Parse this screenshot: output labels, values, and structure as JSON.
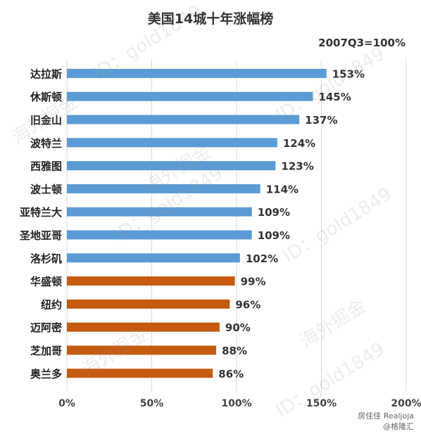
{
  "chart_data": {
    "type": "bar",
    "orientation": "horizontal",
    "title": "美国14城十年涨幅榜",
    "subtitle": "2007Q3=100%",
    "categories": [
      "达拉斯",
      "休斯顿",
      "旧金山",
      "波特兰",
      "西雅图",
      "波士顿",
      "亚特兰大",
      "圣地亚哥",
      "洛杉矶",
      "华盛顿",
      "纽约",
      "迈阿密",
      "芝加哥",
      "奥兰多"
    ],
    "values": [
      153,
      145,
      137,
      124,
      123,
      114,
      109,
      109,
      102,
      99,
      96,
      90,
      88,
      86
    ],
    "value_labels": [
      "153%",
      "145%",
      "137%",
      "124%",
      "123%",
      "114%",
      "109%",
      "109%",
      "102%",
      "99%",
      "96%",
      "90%",
      "88%",
      "86%"
    ],
    "xlim": [
      0,
      200
    ],
    "x_ticks": [
      0,
      50,
      100,
      150,
      200
    ],
    "x_tick_labels": [
      "0%",
      "50%",
      "100%",
      "150%",
      "200%"
    ],
    "grid": true,
    "colors": {
      "above_100": "#5b9bd5",
      "below_100": "#c55a11"
    }
  },
  "watermark": {
    "id_text": "ID：gold1849",
    "cn_text": "海外掘金"
  },
  "credits": [
    "房佳佳 Realjoja",
    "@格隆汇"
  ]
}
